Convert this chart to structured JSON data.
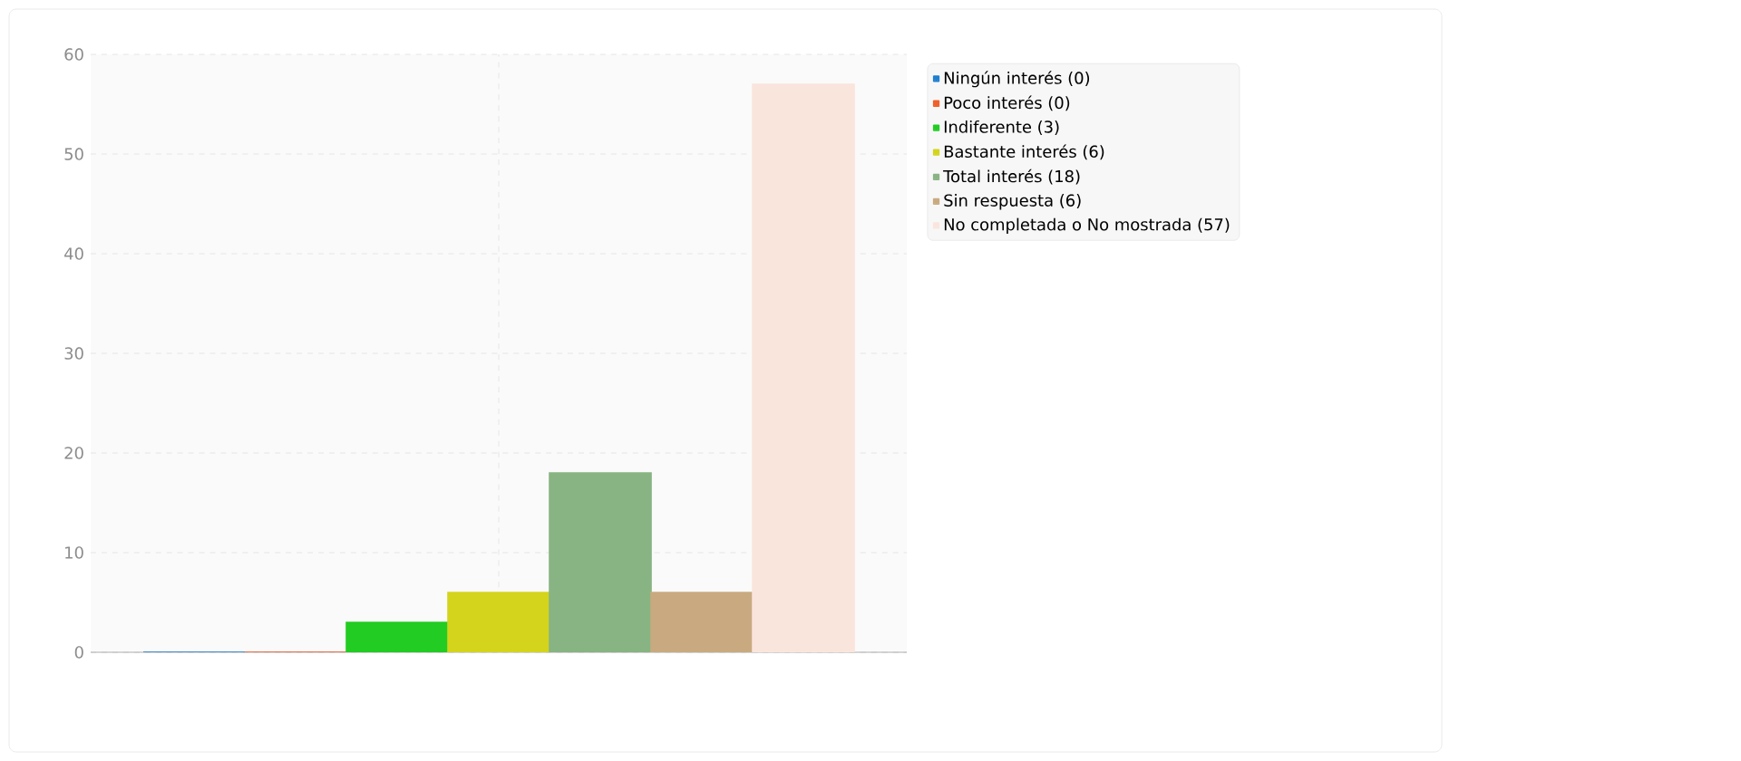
{
  "chart_data": {
    "type": "bar",
    "categories": [
      null
    ],
    "series": [
      {
        "name": "Ningún interés (0)",
        "color": "#1f7fd0",
        "values": [
          0
        ]
      },
      {
        "name": "Poco interés (0)",
        "color": "#f0602a",
        "values": [
          0
        ]
      },
      {
        "name": "Indiferente (3)",
        "color": "#22cc22",
        "values": [
          3
        ]
      },
      {
        "name": "Bastante interés (6)",
        "color": "#d4d41c",
        "values": [
          6
        ]
      },
      {
        "name": "Total interés (18)",
        "color": "#88b483",
        "values": [
          18
        ]
      },
      {
        "name": "Sin respuesta (6)",
        "color": "#c9aa80",
        "values": [
          6
        ]
      },
      {
        "name": "No completada o No mostrada (57)",
        "color": "#fae5dd",
        "values": [
          57
        ]
      }
    ],
    "ylim": [
      0,
      60
    ],
    "yticks": [
      0,
      10,
      20,
      30,
      40,
      50,
      60
    ],
    "grid": true,
    "legend": "top right",
    "tick_labels": "y"
  }
}
